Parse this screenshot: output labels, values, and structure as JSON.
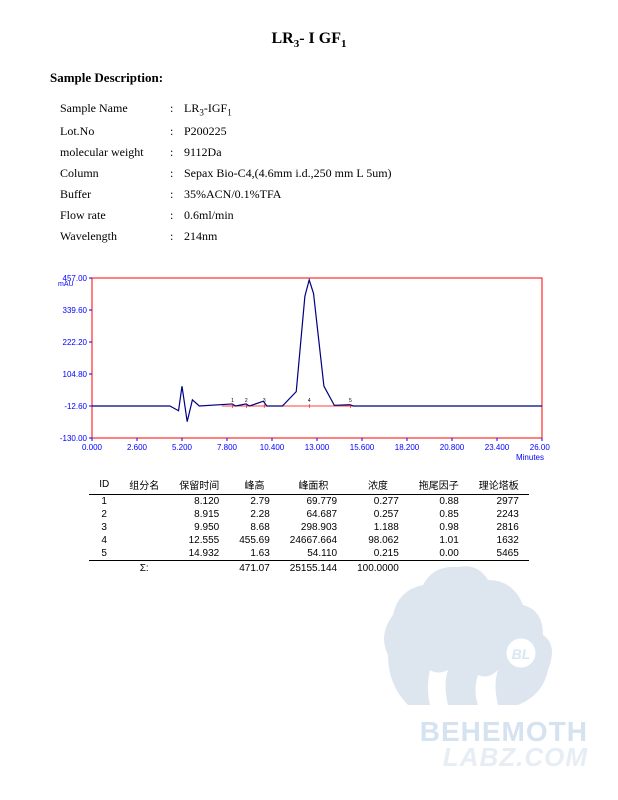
{
  "title": {
    "pre": "LR",
    "sub1": "3",
    "mid": "- I GF",
    "sub2": "1"
  },
  "section_header": "Sample Description:",
  "description": {
    "sample_name_label": "Sample Name",
    "sample_name_pre": "LR",
    "sample_name_sub1": "3",
    "sample_name_mid": "-IGF",
    "sample_name_sub2": "1",
    "lot_label": "Lot.No",
    "lot_value": "P200225",
    "mw_label": "molecular weight",
    "mw_value": "9112Da",
    "column_label": "Column",
    "column_value": "Sepax Bio-C4,(4.6mm i.d.,250 mm L 5um)",
    "buffer_label": "Buffer",
    "buffer_value": "35%ACN/0.1%TFA",
    "flow_label": "Flow rate",
    "flow_value": "0.6ml/min",
    "wavelength_label": "Wavelength",
    "wavelength_value": "214nm"
  },
  "chart": {
    "type": "line",
    "y_unit": "mAU",
    "x_unit": "Minutes",
    "ylim": [
      -130.0,
      457.0
    ],
    "xlim": [
      0.0,
      26.0
    ],
    "y_ticks": [
      "-130.00",
      "-12.60",
      "104.80",
      "222.20",
      "339.60",
      "457.00"
    ],
    "x_ticks": [
      "0.000",
      "2.600",
      "5.200",
      "7.800",
      "10.400",
      "13.000",
      "15.600",
      "18.200",
      "20.800",
      "23.400",
      "26.000"
    ],
    "frame_color": "#ff0000",
    "trace_color": "#000080",
    "baseline_color": "#ff0000",
    "tick_color": "#0000ff",
    "axis_text_color": "#0000ff",
    "background_color": "#ffffff",
    "trace_points": [
      [
        0.0,
        -12.6
      ],
      [
        4.5,
        -12.6
      ],
      [
        5.0,
        -30
      ],
      [
        5.2,
        60
      ],
      [
        5.5,
        -70
      ],
      [
        5.8,
        10
      ],
      [
        6.2,
        -12.6
      ],
      [
        8.1,
        -5
      ],
      [
        8.3,
        -12.6
      ],
      [
        8.9,
        -5
      ],
      [
        9.1,
        -12.6
      ],
      [
        9.9,
        5
      ],
      [
        10.1,
        -12.6
      ],
      [
        11.0,
        -12.6
      ],
      [
        11.8,
        40
      ],
      [
        12.3,
        390
      ],
      [
        12.55,
        450
      ],
      [
        12.8,
        400
      ],
      [
        13.4,
        60
      ],
      [
        14.0,
        -10
      ],
      [
        14.9,
        -8
      ],
      [
        15.1,
        -12.6
      ],
      [
        26.0,
        -12.6
      ]
    ],
    "baseline_y": -12.6,
    "peak_markers": [
      8.12,
      8.915,
      9.95,
      12.555,
      14.932
    ]
  },
  "table": {
    "headers": [
      "ID",
      "组分名",
      "保留时间",
      "峰高",
      "峰面积",
      "浓度",
      "拖尾因子",
      "理论塔板"
    ],
    "rows": [
      {
        "id": "1",
        "name": "",
        "rt": "8.120",
        "h": "2.79",
        "area": "69.779",
        "conc": "0.277",
        "tail": "0.88",
        "plates": "2977"
      },
      {
        "id": "2",
        "name": "",
        "rt": "8.915",
        "h": "2.28",
        "area": "64.687",
        "conc": "0.257",
        "tail": "0.85",
        "plates": "2243"
      },
      {
        "id": "3",
        "name": "",
        "rt": "9.950",
        "h": "8.68",
        "area": "298.903",
        "conc": "1.188",
        "tail": "0.98",
        "plates": "2816"
      },
      {
        "id": "4",
        "name": "",
        "rt": "12.555",
        "h": "455.69",
        "area": "24667.664",
        "conc": "98.062",
        "tail": "1.01",
        "plates": "1632"
      },
      {
        "id": "5",
        "name": "",
        "rt": "14.932",
        "h": "1.63",
        "area": "54.110",
        "conc": "0.215",
        "tail": "0.00",
        "plates": "5465"
      }
    ],
    "sum": {
      "label": "Σ:",
      "h": "471.07",
      "area": "25155.144",
      "conc": "100.0000"
    }
  },
  "watermark": {
    "line1": "BEHEMOTH",
    "line2": "LABZ.COM",
    "badge": "BL"
  }
}
